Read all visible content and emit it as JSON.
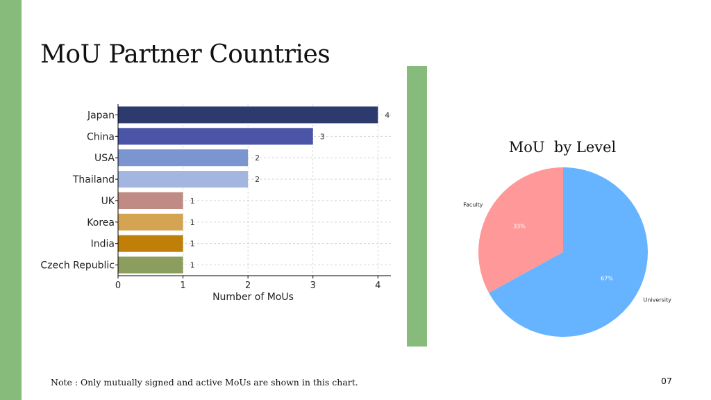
{
  "slide": {
    "title": "MoU Partner Countries",
    "note": "Note : Only mutually signed and active MoUs are shown in this chart.",
    "page_number": "07",
    "accent_color": "#87bb7c"
  },
  "chart_data": [
    {
      "type": "bar",
      "orientation": "horizontal",
      "categories": [
        "Japan",
        "China",
        "USA",
        "Thailand",
        "UK",
        "Korea",
        "India",
        "Czech Republic"
      ],
      "values": [
        4,
        3,
        2,
        2,
        1,
        1,
        1,
        1
      ],
      "colors": [
        "#2d3a6e",
        "#4a55a8",
        "#7a95cf",
        "#a3b6df",
        "#c08b85",
        "#d4a452",
        "#c07f08",
        "#8c9e5e"
      ],
      "title": "",
      "xlabel": "Number of MoUs",
      "ylabel": "",
      "xlim": [
        0,
        4.2
      ],
      "xticks": [
        "0",
        "1",
        "2",
        "3",
        "4"
      ],
      "data_labels": [
        "4",
        "3",
        "2",
        "2",
        "1",
        "1",
        "1",
        "1"
      ],
      "grid": true
    },
    {
      "type": "pie",
      "title": "MoU  by Level",
      "labels": [
        "Faculty",
        "University"
      ],
      "values": [
        33,
        67
      ],
      "percent_labels": [
        "33%",
        "67%"
      ],
      "colors": [
        "#ff9999",
        "#66b3ff"
      ]
    }
  ]
}
